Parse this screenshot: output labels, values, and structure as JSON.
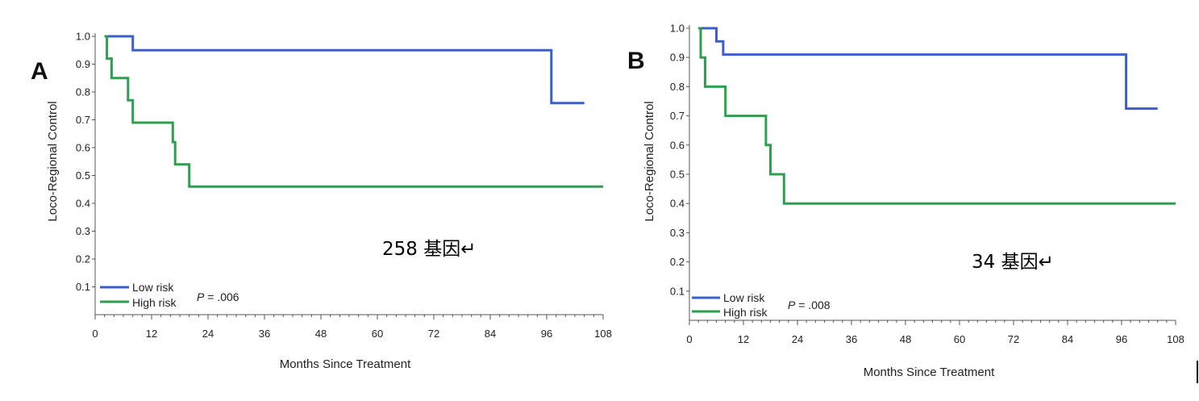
{
  "chart_data": [
    {
      "type": "line",
      "panel_label": "A",
      "xlabel": "Months Since Treatment",
      "ylabel": "Loco-Regional Control",
      "xlim": [
        0,
        108
      ],
      "ylim": [
        0,
        1.0
      ],
      "x_ticks": [
        "0",
        "12",
        "24",
        "36",
        "48",
        "60",
        "72",
        "84",
        "96",
        "108"
      ],
      "y_ticks": [
        "0.1",
        "0.2",
        "0.3",
        "0.4",
        "0.5",
        "0.6",
        "0.7",
        "0.8",
        "0.9",
        "1.0"
      ],
      "series": [
        {
          "name": "Low risk",
          "color": "#3a5fcd",
          "x": [
            2,
            8,
            8,
            97,
            97,
            104
          ],
          "y": [
            1.0,
            1.0,
            0.95,
            0.95,
            0.76,
            0.76
          ]
        },
        {
          "name": "High risk",
          "color": "#2e9e4f",
          "x": [
            2,
            2.5,
            2.5,
            3.5,
            3.5,
            7,
            7,
            8,
            8,
            16.5,
            16.5,
            17,
            17,
            20,
            20,
            108
          ],
          "y": [
            1.0,
            1.0,
            0.92,
            0.92,
            0.85,
            0.85,
            0.77,
            0.77,
            0.69,
            0.69,
            0.62,
            0.62,
            0.54,
            0.54,
            0.46,
            0.46
          ]
        }
      ],
      "legend_position": "bottom-left",
      "p_value_label": "P",
      "p_value_text": " = .006",
      "annotation": "258 基因↵"
    },
    {
      "type": "line",
      "panel_label": "B",
      "xlabel": "Months Since Treatment",
      "ylabel": "Loco-Regional Control",
      "xlim": [
        0,
        108
      ],
      "ylim": [
        0,
        1.0
      ],
      "x_ticks": [
        "0",
        "12",
        "24",
        "36",
        "48",
        "60",
        "72",
        "84",
        "96",
        "108"
      ],
      "y_ticks": [
        "0.1",
        "0.2",
        "0.3",
        "0.4",
        "0.5",
        "0.6",
        "0.7",
        "0.8",
        "0.9",
        "1.0"
      ],
      "series": [
        {
          "name": "Low risk",
          "color": "#3a5fcd",
          "x": [
            2,
            6,
            6,
            7.5,
            7.5,
            97,
            97,
            104
          ],
          "y": [
            1.0,
            1.0,
            0.955,
            0.955,
            0.91,
            0.91,
            0.725,
            0.725
          ]
        },
        {
          "name": "High risk",
          "color": "#2e9e4f",
          "x": [
            2,
            2.5,
            2.5,
            3.5,
            3.5,
            8,
            8,
            17,
            17,
            18,
            18,
            21,
            21,
            108
          ],
          "y": [
            1.0,
            1.0,
            0.9,
            0.9,
            0.8,
            0.8,
            0.7,
            0.7,
            0.6,
            0.6,
            0.5,
            0.5,
            0.4,
            0.4
          ]
        }
      ],
      "legend_position": "bottom-left",
      "p_value_label": "P",
      "p_value_text": " = .008",
      "annotation": "34 基因↵"
    }
  ]
}
